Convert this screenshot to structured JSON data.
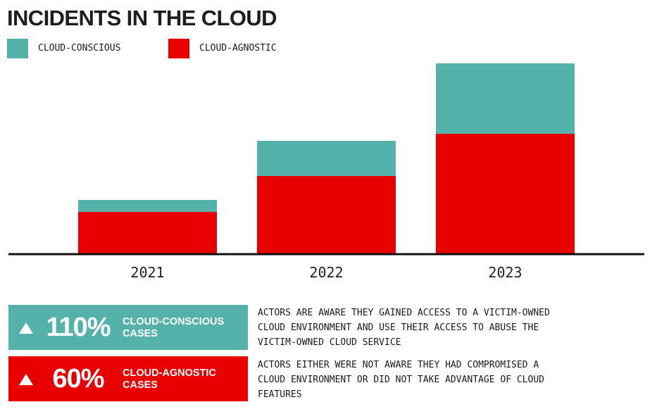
{
  "title": "INCIDENTS IN THE CLOUD",
  "colors": {
    "cloud_conscious": "#55B2AA",
    "cloud_agnostic": "#E80000",
    "axis": "#111111"
  },
  "legend": [
    {
      "label": "CLOUD-CONSCIOUS",
      "color": "#55B2AA"
    },
    {
      "label": "CLOUD-AGNOSTIC",
      "color": "#E80000"
    }
  ],
  "chart_data": {
    "type": "bar",
    "stacked": true,
    "categories": [
      "2021",
      "2022",
      "2023"
    ],
    "series": [
      {
        "name": "CLOUD-AGNOSTIC",
        "color": "#E80000",
        "values": [
          59,
          110,
          170
        ]
      },
      {
        "name": "CLOUD-CONSCIOUS",
        "color": "#55B2AA",
        "values": [
          17,
          50,
          100
        ]
      }
    ],
    "ylim": [
      0,
      270
    ],
    "grid": false,
    "legend_position": "top-left",
    "xlabel": "",
    "ylabel": ""
  },
  "stats": [
    {
      "percent": "110%",
      "label_lines": [
        "CLOUD-CONSCIOUS",
        "CASES"
      ],
      "color": "#55B2AA",
      "description_lines": [
        "ACTORS ARE AWARE THEY GAINED ACCESS TO A VICTIM-OWNED",
        "CLOUD ENVIRONMENT AND USE THEIR ACCESS TO ABUSE THE",
        "VICTIM-OWNED CLOUD SERVICE"
      ]
    },
    {
      "percent": "60%",
      "label_lines": [
        "CLOUD-AGNOSTIC",
        "CASES"
      ],
      "color": "#E80000",
      "description_lines": [
        "ACTORS EITHER WERE NOT AWARE THEY HAD COMPROMISED A",
        "CLOUD ENVIRONMENT OR DID NOT TAKE ADVANTAGE OF CLOUD",
        "FEATURES"
      ]
    }
  ]
}
